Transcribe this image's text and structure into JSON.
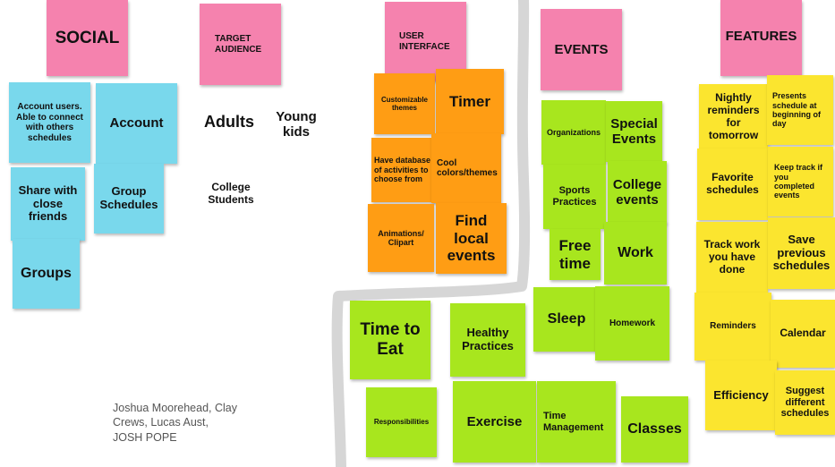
{
  "colors": {
    "pink": "#f582ae",
    "blue": "#79d8ec",
    "orange": "#ff9d14",
    "green": "#a8e61e",
    "yellow": "#fbe52f",
    "divider": "#d6d6d6"
  },
  "headers": {
    "social": "SOCIAL",
    "target_audience": "TARGET AUDIENCE",
    "user_interface": "USER INTERFACE",
    "events": "EVENTS",
    "features": "FEATURES"
  },
  "social_notes": {
    "account_users": "Account users. Able to connect with others schedules",
    "account": "Account",
    "share": "Share with close friends",
    "group_schedules": "Group Schedules",
    "groups": "Groups"
  },
  "audience": {
    "adults": "Adults",
    "young_kids": "Young kids",
    "college_students": "College Students"
  },
  "ui_notes": {
    "customizable_themes": "Customizable themes",
    "timer": "Timer",
    "database": "Have database of activities to choose from",
    "cool_colors": "Cool colors/themes",
    "animations": "Animations/ Clipart",
    "find_local_events": "Find local events"
  },
  "events_notes": {
    "organizations": "Organizations",
    "special_events": "Special Events",
    "sports_practices": "Sports Practices",
    "college_events": "College events",
    "free_time": "Free time",
    "work": "Work",
    "sleep": "Sleep",
    "homework": "Homework",
    "time_to_eat": "Time to Eat",
    "healthy_practices": "Healthy Practices",
    "responsibilities": "Responsibilities",
    "exercise": "Exercise",
    "time_management": "Time Management",
    "classes": "Classes"
  },
  "features_notes": {
    "nightly_reminders": "Nightly reminders for tomorrow",
    "presents_schedule": "Presents schedule at beginning of day",
    "favorite_schedules": "Favorite schedules",
    "keep_track": "Keep track if you completed events",
    "track_work": "Track work you have done",
    "save_previous": "Save previous schedules",
    "reminders": "Reminders",
    "calendar": "Calendar",
    "efficiency": "Efficiency",
    "suggest_different": "Suggest different schedules"
  },
  "authors": "Joshua Moorehead, Clay Crews, Lucas Aust, JOSH POPE"
}
